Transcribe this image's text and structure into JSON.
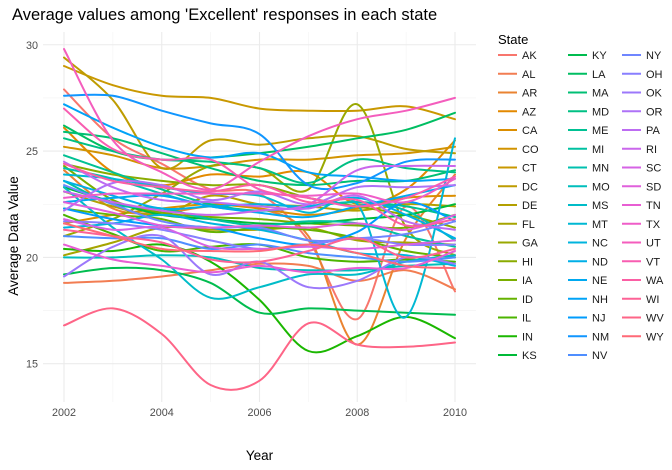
{
  "chart_data": {
    "type": "line",
    "title": "Average values among 'Excellent' responses in each state",
    "xlabel": "Year",
    "ylabel": "Average Data Value",
    "xlim": [
      2002,
      2010
    ],
    "ylim": [
      13.2,
      30.6
    ],
    "xticks": [
      2002,
      2004,
      2006,
      2008,
      2010
    ],
    "yticks": [
      15,
      20,
      25,
      30
    ],
    "grid": true,
    "legend_title": "State",
    "legend_position": "right",
    "x": [
      2002,
      2003,
      2004,
      2005,
      2006,
      2007,
      2008,
      2009,
      2010
    ],
    "series": [
      {
        "name": "AK",
        "color": "#F8766D",
        "values": [
          27.9,
          25.6,
          24.4,
          23.2,
          23.0,
          20.8,
          17.1,
          22.4,
          18.4
        ]
      },
      {
        "name": "AL",
        "color": "#F27D52",
        "values": [
          18.8,
          18.9,
          19.1,
          19.4,
          19.7,
          19.6,
          18.9,
          19.4,
          18.5
        ]
      },
      {
        "name": "AR",
        "color": "#EA8331",
        "values": [
          24.1,
          22.3,
          22.1,
          22.4,
          22.3,
          21.0,
          15.9,
          20.9,
          23.9
        ]
      },
      {
        "name": "AZ",
        "color": "#E38900",
        "values": [
          26.1,
          24.0,
          23.4,
          23.9,
          23.8,
          24.0,
          22.5,
          23.2,
          25.5
        ]
      },
      {
        "name": "CA",
        "color": "#DB8E00",
        "values": [
          21.6,
          22.0,
          22.3,
          22.5,
          22.3,
          22.0,
          22.3,
          22.8,
          22.9
        ]
      },
      {
        "name": "CO",
        "color": "#D29300",
        "values": [
          25.2,
          24.8,
          24.2,
          24.3,
          24.6,
          24.6,
          24.8,
          24.9,
          25.2
        ]
      },
      {
        "name": "CT",
        "color": "#C99800",
        "values": [
          29.0,
          28.1,
          27.6,
          27.5,
          27.0,
          26.9,
          26.9,
          27.1,
          26.5
        ]
      },
      {
        "name": "DC",
        "color": "#BE9C00",
        "values": [
          29.4,
          27.4,
          24.2,
          25.5,
          25.3,
          25.6,
          25.7,
          25.1,
          24.9
        ]
      },
      {
        "name": "DE",
        "color": "#B3A000",
        "values": [
          23.1,
          22.4,
          22.0,
          22.9,
          22.5,
          22.4,
          22.2,
          22.5,
          22.4
        ]
      },
      {
        "name": "FL",
        "color": "#A6A400",
        "values": [
          20.1,
          20.7,
          21.4,
          21.3,
          21.3,
          21.4,
          20.8,
          20.7,
          20.6
        ]
      },
      {
        "name": "GA",
        "color": "#99A800",
        "values": [
          21.0,
          21.8,
          23.0,
          24.3,
          24.2,
          23.2,
          27.2,
          21.4,
          20.1
        ]
      },
      {
        "name": "HI",
        "color": "#8AAB00",
        "values": [
          24.4,
          23.9,
          23.6,
          23.4,
          23.4,
          22.8,
          22.4,
          22.0,
          21.4
        ]
      },
      {
        "name": "IA",
        "color": "#7AAE00",
        "values": [
          24.3,
          22.7,
          22.1,
          21.9,
          21.8,
          21.6,
          21.5,
          21.4,
          22.0
        ]
      },
      {
        "name": "ID",
        "color": "#66B200",
        "values": [
          22.3,
          22.0,
          21.8,
          21.2,
          21.4,
          21.3,
          20.9,
          20.3,
          20.0
        ]
      },
      {
        "name": "IL",
        "color": "#4CB400",
        "values": [
          22.0,
          21.1,
          20.3,
          20.5,
          20.6,
          20.0,
          19.8,
          19.9,
          19.8
        ]
      },
      {
        "name": "IN",
        "color": "#1BB700",
        "values": [
          20.4,
          20.3,
          20.6,
          19.8,
          18.0,
          15.6,
          16.3,
          17.2,
          16.2
        ]
      },
      {
        "name": "KS",
        "color": "#00BA38",
        "values": [
          23.3,
          22.6,
          22.0,
          21.8,
          21.6,
          21.6,
          21.8,
          22.0,
          22.5
        ]
      },
      {
        "name": "KY",
        "color": "#00BC4F",
        "values": [
          19.2,
          19.5,
          19.4,
          18.8,
          17.4,
          17.6,
          17.5,
          17.4,
          17.3
        ]
      },
      {
        "name": "LA",
        "color": "#00BE62",
        "values": [
          26.2,
          25.0,
          24.6,
          24.7,
          24.9,
          25.2,
          25.6,
          26.0,
          26.8
        ]
      },
      {
        "name": "MA",
        "color": "#00BF74",
        "values": [
          25.9,
          25.6,
          24.9,
          24.2,
          23.6,
          23.4,
          23.6,
          23.6,
          24.1
        ]
      },
      {
        "name": "MD",
        "color": "#00C084",
        "values": [
          25.6,
          25.0,
          24.6,
          24.5,
          24.2,
          23.5,
          24.6,
          24.2,
          24.0
        ]
      },
      {
        "name": "ME",
        "color": "#00C193",
        "values": [
          24.8,
          24.0,
          23.2,
          22.5,
          22.2,
          22.4,
          22.6,
          22.4,
          21.9
        ]
      },
      {
        "name": "MI",
        "color": "#00C1A1",
        "values": [
          23.6,
          22.5,
          22.3,
          21.8,
          21.5,
          21.7,
          21.6,
          21.0,
          20.5
        ]
      },
      {
        "name": "MN",
        "color": "#00C0AF",
        "values": [
          24.2,
          23.7,
          23.0,
          22.4,
          22.2,
          22.4,
          22.6,
          22.2,
          20.8
        ]
      },
      {
        "name": "MO",
        "color": "#00BEBC",
        "values": [
          20.0,
          20.0,
          20.1,
          20.0,
          19.5,
          19.4,
          19.4,
          19.6,
          19.7
        ]
      },
      {
        "name": "MS",
        "color": "#00BCC8",
        "values": [
          23.3,
          21.4,
          19.9,
          18.1,
          18.6,
          19.2,
          19.2,
          19.8,
          20.1
        ]
      },
      {
        "name": "MT",
        "color": "#00B8D3",
        "values": [
          23.9,
          23.7,
          23.3,
          23.0,
          22.9,
          22.1,
          22.5,
          17.2,
          25.6
        ]
      },
      {
        "name": "NC",
        "color": "#00B4DE",
        "values": [
          21.4,
          21.6,
          22.0,
          21.6,
          21.3,
          20.8,
          20.2,
          20.1,
          19.6
        ]
      },
      {
        "name": "ND",
        "color": "#00AFE7",
        "values": [
          23.6,
          22.9,
          22.3,
          22.4,
          22.5,
          22.4,
          22.8,
          22.0,
          20.9
        ]
      },
      {
        "name": "NE",
        "color": "#00A9F0",
        "values": [
          22.6,
          22.8,
          22.9,
          22.4,
          22.1,
          21.9,
          22.4,
          22.9,
          23.4
        ]
      },
      {
        "name": "NH",
        "color": "#00A3F7",
        "values": [
          27.2,
          26.1,
          25.2,
          24.7,
          24.9,
          24.0,
          23.8,
          23.6,
          23.7
        ]
      },
      {
        "name": "NJ",
        "color": "#009CFD",
        "values": [
          22.3,
          21.8,
          21.5,
          21.4,
          20.9,
          20.6,
          21.2,
          22.6,
          21.7
        ]
      },
      {
        "name": "NM",
        "color": "#1096FF",
        "values": [
          27.6,
          27.6,
          26.9,
          26.3,
          25.8,
          23.4,
          23.5,
          24.5,
          24.6
        ]
      },
      {
        "name": "NV",
        "color": "#4F8EFF",
        "values": [
          21.0,
          20.9,
          20.9,
          20.4,
          20.6,
          20.2,
          20.0,
          19.8,
          20.0
        ]
      },
      {
        "name": "NY",
        "color": "#6F86FF",
        "values": [
          23.4,
          22.5,
          21.7,
          21.4,
          21.4,
          20.8,
          20.9,
          21.1,
          21.7
        ]
      },
      {
        "name": "OH",
        "color": "#887FFF",
        "values": [
          21.7,
          21.6,
          21.3,
          20.8,
          20.4,
          20.6,
          20.9,
          20.6,
          20.6
        ]
      },
      {
        "name": "OK",
        "color": "#9C78FB",
        "values": [
          19.1,
          20.5,
          21.0,
          19.2,
          19.8,
          18.6,
          18.9,
          20.0,
          19.7
        ]
      },
      {
        "name": "OR",
        "color": "#AE72F7",
        "values": [
          22.2,
          23.5,
          23.4,
          22.7,
          23.1,
          22.5,
          23.3,
          23.3,
          23.4
        ]
      },
      {
        "name": "PA",
        "color": "#BD6CF2",
        "values": [
          24.5,
          23.3,
          22.7,
          22.6,
          22.4,
          22.3,
          22.9,
          21.7,
          21.3
        ]
      },
      {
        "name": "RI",
        "color": "#CA67EC",
        "values": [
          23.1,
          22.6,
          22.2,
          22.0,
          22.2,
          22.5,
          24.1,
          24.3,
          24.3
        ]
      },
      {
        "name": "SC",
        "color": "#D663E5",
        "values": [
          21.8,
          21.3,
          21.4,
          20.5,
          20.4,
          20.5,
          20.4,
          20.6,
          20.8
        ]
      },
      {
        "name": "SD",
        "color": "#E060DC",
        "values": [
          22.6,
          22.1,
          21.5,
          21.4,
          21.5,
          21.4,
          21.6,
          21.3,
          22.0
        ]
      },
      {
        "name": "TN",
        "color": "#E85ED3",
        "values": [
          20.6,
          19.9,
          19.6,
          19.3,
          19.6,
          19.3,
          19.5,
          19.5,
          20.3
        ]
      },
      {
        "name": "TX",
        "color": "#EF5DC8",
        "values": [
          22.8,
          23.0,
          23.0,
          23.0,
          23.0,
          22.9,
          23.0,
          22.6,
          23.7
        ]
      },
      {
        "name": "UT",
        "color": "#F45DBD",
        "values": [
          29.8,
          25.5,
          24.0,
          23.2,
          24.5,
          25.7,
          26.5,
          26.9,
          27.5
        ]
      },
      {
        "name": "VT",
        "color": "#F85DB1",
        "values": [
          27.0,
          25.1,
          24.6,
          24.6,
          23.2,
          22.8,
          22.4,
          22.8,
          23.8
        ]
      },
      {
        "name": "WA",
        "color": "#FB5FA4",
        "values": [
          24.4,
          23.6,
          23.3,
          23.1,
          23.4,
          22.6,
          22.7,
          21.5,
          21.8
        ]
      },
      {
        "name": "WI",
        "color": "#FD6296",
        "values": [
          21.3,
          21.0,
          20.7,
          19.9,
          19.8,
          20.3,
          20.9,
          20.0,
          20.4
        ]
      },
      {
        "name": "WV",
        "color": "#FE6587",
        "values": [
          16.8,
          17.6,
          16.4,
          14.0,
          14.2,
          16.9,
          15.9,
          15.8,
          16.0
        ]
      },
      {
        "name": "WY",
        "color": "#FF6977",
        "values": [
          21.6,
          21.0,
          20.4,
          20.3,
          20.3,
          20.6,
          20.2,
          19.6,
          19.5
        ]
      }
    ]
  }
}
